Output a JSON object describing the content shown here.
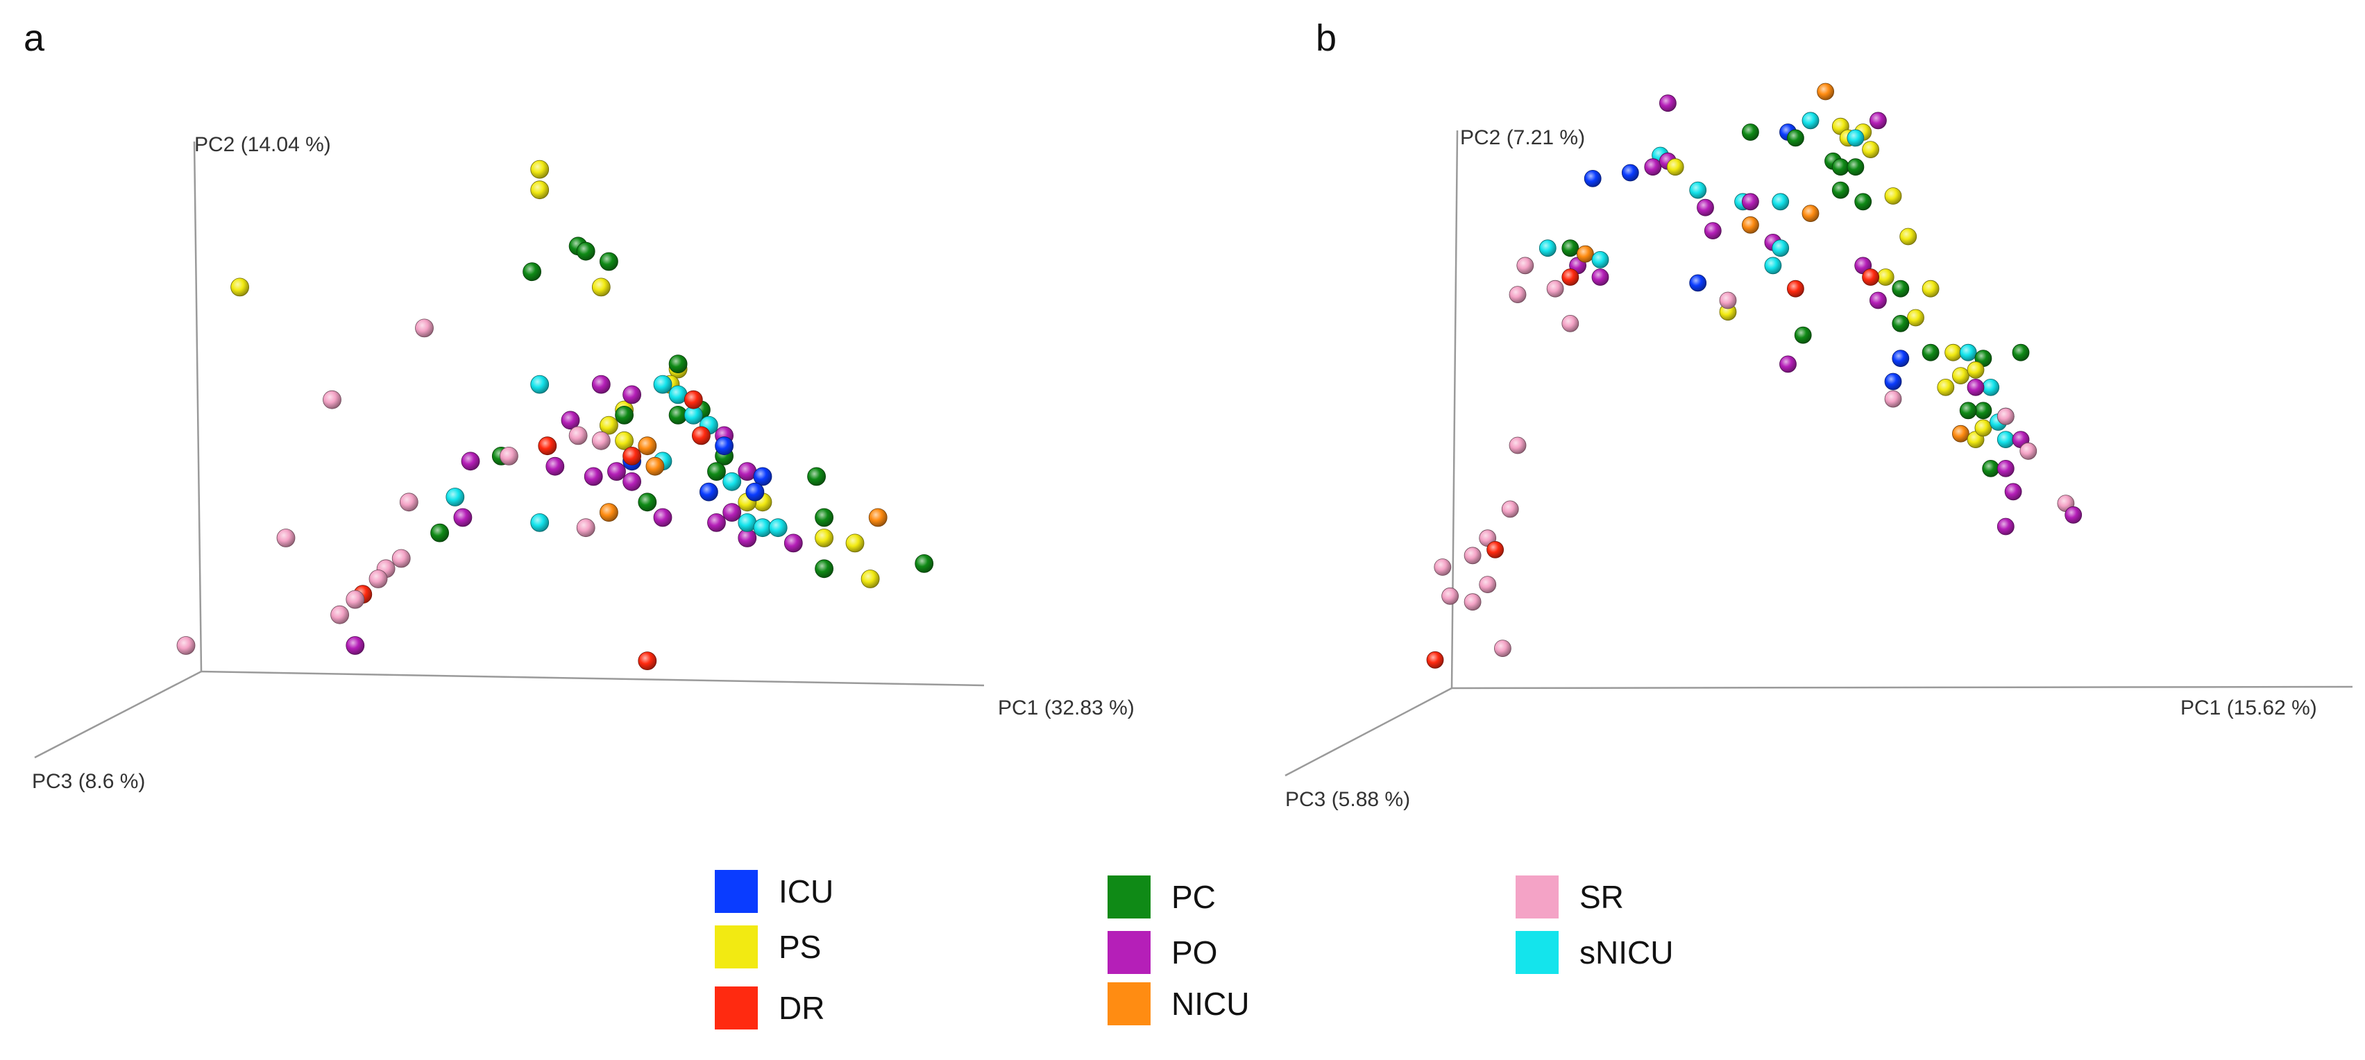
{
  "panels": {
    "a": "a",
    "b": "b"
  },
  "colors": {
    "ICU": "#0a3cff",
    "PS": "#f2ea12",
    "DR": "#ff2a10",
    "PC": "#0f8a16",
    "PO": "#b51fb8",
    "NICU": "#ff8c12",
    "SR": "#f4a3c6",
    "sNICU": "#14e4ec"
  },
  "legend": [
    {
      "key": "ICU",
      "label": "ICU"
    },
    {
      "key": "PS",
      "label": "PS"
    },
    {
      "key": "DR",
      "label": "DR"
    },
    {
      "key": "PC",
      "label": "PC"
    },
    {
      "key": "PO",
      "label": "PO"
    },
    {
      "key": "NICU",
      "label": "NICU"
    },
    {
      "key": "SR",
      "label": "SR"
    },
    {
      "key": "sNICU",
      "label": "sNICU"
    }
  ],
  "chart_data": [
    {
      "type": "scatter",
      "panel": "a",
      "title": "",
      "xlabel": "PC1 (32.83 %)",
      "ylabel": "PC2 (14.04 %)",
      "zlabel": "PC3 (8.6 %)",
      "xlim": [
        0,
        1
      ],
      "ylim": [
        0,
        1
      ],
      "note": "3D PCoA scatter; x/y are projected values normalized to the plotted axes",
      "points": [
        {
          "g": "PS",
          "x": 0.46,
          "y": 0.97
        },
        {
          "g": "PS",
          "x": 0.46,
          "y": 0.93
        },
        {
          "g": "PS",
          "x": 0.07,
          "y": 0.74
        },
        {
          "g": "PS",
          "x": 0.54,
          "y": 0.74
        },
        {
          "g": "PS",
          "x": 0.64,
          "y": 0.58
        },
        {
          "g": "PS",
          "x": 0.63,
          "y": 0.55
        },
        {
          "g": "PS",
          "x": 0.57,
          "y": 0.5
        },
        {
          "g": "PS",
          "x": 0.57,
          "y": 0.44
        },
        {
          "g": "PS",
          "x": 0.75,
          "y": 0.32
        },
        {
          "g": "PS",
          "x": 0.83,
          "y": 0.25
        },
        {
          "g": "PS",
          "x": 0.87,
          "y": 0.24
        },
        {
          "g": "PS",
          "x": 0.89,
          "y": 0.17
        },
        {
          "g": "PS",
          "x": 0.55,
          "y": 0.47
        },
        {
          "g": "PS",
          "x": 0.73,
          "y": 0.32
        },
        {
          "g": "PC",
          "x": 0.51,
          "y": 0.82
        },
        {
          "g": "PC",
          "x": 0.52,
          "y": 0.81
        },
        {
          "g": "PC",
          "x": 0.55,
          "y": 0.79
        },
        {
          "g": "PC",
          "x": 0.45,
          "y": 0.77
        },
        {
          "g": "PC",
          "x": 0.64,
          "y": 0.59
        },
        {
          "g": "PC",
          "x": 0.67,
          "y": 0.5
        },
        {
          "g": "PC",
          "x": 0.7,
          "y": 0.41
        },
        {
          "g": "PC",
          "x": 0.82,
          "y": 0.37
        },
        {
          "g": "PC",
          "x": 0.83,
          "y": 0.29
        },
        {
          "g": "PC",
          "x": 0.83,
          "y": 0.19
        },
        {
          "g": "PC",
          "x": 0.96,
          "y": 0.2
        },
        {
          "g": "PC",
          "x": 0.41,
          "y": 0.41
        },
        {
          "g": "PC",
          "x": 0.33,
          "y": 0.26
        },
        {
          "g": "PC",
          "x": 0.6,
          "y": 0.32
        },
        {
          "g": "PC",
          "x": 0.57,
          "y": 0.49
        },
        {
          "g": "PC",
          "x": 0.64,
          "y": 0.49
        },
        {
          "g": "PC",
          "x": 0.69,
          "y": 0.38
        },
        {
          "g": "PO",
          "x": 0.54,
          "y": 0.55
        },
        {
          "g": "PO",
          "x": 0.58,
          "y": 0.53
        },
        {
          "g": "PO",
          "x": 0.5,
          "y": 0.48
        },
        {
          "g": "PO",
          "x": 0.48,
          "y": 0.39
        },
        {
          "g": "PO",
          "x": 0.53,
          "y": 0.37
        },
        {
          "g": "PO",
          "x": 0.56,
          "y": 0.38
        },
        {
          "g": "PO",
          "x": 0.7,
          "y": 0.45
        },
        {
          "g": "PO",
          "x": 0.73,
          "y": 0.38
        },
        {
          "g": "PO",
          "x": 0.71,
          "y": 0.3
        },
        {
          "g": "PO",
          "x": 0.69,
          "y": 0.28
        },
        {
          "g": "PO",
          "x": 0.73,
          "y": 0.25
        },
        {
          "g": "PO",
          "x": 0.79,
          "y": 0.24
        },
        {
          "g": "PO",
          "x": 0.62,
          "y": 0.29
        },
        {
          "g": "PO",
          "x": 0.37,
          "y": 0.4
        },
        {
          "g": "PO",
          "x": 0.36,
          "y": 0.29
        },
        {
          "g": "PO",
          "x": 0.22,
          "y": 0.04
        },
        {
          "g": "PO",
          "x": 0.58,
          "y": 0.36
        },
        {
          "g": "sNICU",
          "x": 0.46,
          "y": 0.55
        },
        {
          "g": "sNICU",
          "x": 0.62,
          "y": 0.55
        },
        {
          "g": "sNICU",
          "x": 0.64,
          "y": 0.53
        },
        {
          "g": "sNICU",
          "x": 0.66,
          "y": 0.49
        },
        {
          "g": "sNICU",
          "x": 0.68,
          "y": 0.47
        },
        {
          "g": "sNICU",
          "x": 0.71,
          "y": 0.36
        },
        {
          "g": "sNICU",
          "x": 0.73,
          "y": 0.28
        },
        {
          "g": "sNICU",
          "x": 0.75,
          "y": 0.27
        },
        {
          "g": "sNICU",
          "x": 0.77,
          "y": 0.27
        },
        {
          "g": "sNICU",
          "x": 0.35,
          "y": 0.33
        },
        {
          "g": "sNICU",
          "x": 0.46,
          "y": 0.28
        },
        {
          "g": "sNICU",
          "x": 0.62,
          "y": 0.4
        },
        {
          "g": "ICU",
          "x": 0.7,
          "y": 0.43
        },
        {
          "g": "ICU",
          "x": 0.58,
          "y": 0.4
        },
        {
          "g": "ICU",
          "x": 0.75,
          "y": 0.37
        },
        {
          "g": "ICU",
          "x": 0.74,
          "y": 0.34
        },
        {
          "g": "ICU",
          "x": 0.68,
          "y": 0.34
        },
        {
          "g": "DR",
          "x": 0.47,
          "y": 0.43
        },
        {
          "g": "DR",
          "x": 0.66,
          "y": 0.52
        },
        {
          "g": "DR",
          "x": 0.67,
          "y": 0.45
        },
        {
          "g": "DR",
          "x": 0.58,
          "y": 0.41
        },
        {
          "g": "DR",
          "x": 0.23,
          "y": 0.14
        },
        {
          "g": "DR",
          "x": 0.6,
          "y": 0.01
        },
        {
          "g": "NICU",
          "x": 0.6,
          "y": 0.43
        },
        {
          "g": "NICU",
          "x": 0.61,
          "y": 0.39
        },
        {
          "g": "NICU",
          "x": 0.55,
          "y": 0.3
        },
        {
          "g": "NICU",
          "x": 0.9,
          "y": 0.29
        },
        {
          "g": "SR",
          "x": 0.31,
          "y": 0.66
        },
        {
          "g": "SR",
          "x": 0.19,
          "y": 0.52
        },
        {
          "g": "SR",
          "x": 0.13,
          "y": 0.25
        },
        {
          "g": "SR",
          "x": 0.29,
          "y": 0.32
        },
        {
          "g": "SR",
          "x": 0.28,
          "y": 0.21
        },
        {
          "g": "SR",
          "x": 0.26,
          "y": 0.19
        },
        {
          "g": "SR",
          "x": 0.25,
          "y": 0.17
        },
        {
          "g": "SR",
          "x": 0.22,
          "y": 0.13
        },
        {
          "g": "SR",
          "x": 0.2,
          "y": 0.1
        },
        {
          "g": "SR",
          "x": 0.0,
          "y": 0.04
        },
        {
          "g": "SR",
          "x": 0.42,
          "y": 0.41
        },
        {
          "g": "SR",
          "x": 0.52,
          "y": 0.27
        },
        {
          "g": "SR",
          "x": 0.51,
          "y": 0.45
        },
        {
          "g": "SR",
          "x": 0.54,
          "y": 0.44
        }
      ]
    },
    {
      "type": "scatter",
      "panel": "b",
      "title": "",
      "xlabel": "PC1 (15.62 %)",
      "ylabel": "PC2 (7.21 %)",
      "zlabel": "PC3 (5.88 %)",
      "xlim": [
        0,
        1
      ],
      "ylim": [
        0,
        1
      ],
      "note": "3D PCoA scatter; x/y are projected values normalized to the plotted axes",
      "points": [
        {
          "g": "NICU",
          "x": 0.52,
          "y": 1.0
        },
        {
          "g": "PO",
          "x": 0.31,
          "y": 0.98
        },
        {
          "g": "PO",
          "x": 0.59,
          "y": 0.95
        },
        {
          "g": "PS",
          "x": 0.54,
          "y": 0.94
        },
        {
          "g": "PS",
          "x": 0.55,
          "y": 0.92
        },
        {
          "g": "PS",
          "x": 0.57,
          "y": 0.93
        },
        {
          "g": "PS",
          "x": 0.58,
          "y": 0.9
        },
        {
          "g": "ICU",
          "x": 0.47,
          "y": 0.93
        },
        {
          "g": "PC",
          "x": 0.42,
          "y": 0.93
        },
        {
          "g": "PC",
          "x": 0.48,
          "y": 0.92
        },
        {
          "g": "sNICU",
          "x": 0.5,
          "y": 0.95
        },
        {
          "g": "sNICU",
          "x": 0.56,
          "y": 0.92
        },
        {
          "g": "PC",
          "x": 0.53,
          "y": 0.88
        },
        {
          "g": "PC",
          "x": 0.54,
          "y": 0.87
        },
        {
          "g": "PC",
          "x": 0.56,
          "y": 0.87
        },
        {
          "g": "PC",
          "x": 0.54,
          "y": 0.83
        },
        {
          "g": "PC",
          "x": 0.57,
          "y": 0.81
        },
        {
          "g": "PS",
          "x": 0.61,
          "y": 0.82
        },
        {
          "g": "PS",
          "x": 0.63,
          "y": 0.75
        },
        {
          "g": "PS",
          "x": 0.66,
          "y": 0.66
        },
        {
          "g": "PS",
          "x": 0.6,
          "y": 0.68
        },
        {
          "g": "PS",
          "x": 0.64,
          "y": 0.61
        },
        {
          "g": "ICU",
          "x": 0.21,
          "y": 0.85
        },
        {
          "g": "ICU",
          "x": 0.26,
          "y": 0.86
        },
        {
          "g": "sNICU",
          "x": 0.3,
          "y": 0.89
        },
        {
          "g": "PO",
          "x": 0.29,
          "y": 0.87
        },
        {
          "g": "PO",
          "x": 0.31,
          "y": 0.88
        },
        {
          "g": "PS",
          "x": 0.32,
          "y": 0.87
        },
        {
          "g": "sNICU",
          "x": 0.35,
          "y": 0.83
        },
        {
          "g": "PO",
          "x": 0.36,
          "y": 0.8
        },
        {
          "g": "PO",
          "x": 0.37,
          "y": 0.76
        },
        {
          "g": "sNICU",
          "x": 0.41,
          "y": 0.81
        },
        {
          "g": "PO",
          "x": 0.42,
          "y": 0.81
        },
        {
          "g": "sNICU",
          "x": 0.46,
          "y": 0.81
        },
        {
          "g": "NICU",
          "x": 0.5,
          "y": 0.79
        },
        {
          "g": "NICU",
          "x": 0.42,
          "y": 0.77
        },
        {
          "g": "PO",
          "x": 0.45,
          "y": 0.74
        },
        {
          "g": "sNICU",
          "x": 0.46,
          "y": 0.73
        },
        {
          "g": "sNICU",
          "x": 0.45,
          "y": 0.7
        },
        {
          "g": "PO",
          "x": 0.57,
          "y": 0.7
        },
        {
          "g": "DR",
          "x": 0.58,
          "y": 0.68
        },
        {
          "g": "DR",
          "x": 0.48,
          "y": 0.66
        },
        {
          "g": "PO",
          "x": 0.59,
          "y": 0.64
        },
        {
          "g": "PC",
          "x": 0.62,
          "y": 0.66
        },
        {
          "g": "PC",
          "x": 0.62,
          "y": 0.6
        },
        {
          "g": "PC",
          "x": 0.66,
          "y": 0.55
        },
        {
          "g": "PC",
          "x": 0.78,
          "y": 0.55
        },
        {
          "g": "PC",
          "x": 0.49,
          "y": 0.58
        },
        {
          "g": "PO",
          "x": 0.47,
          "y": 0.53
        },
        {
          "g": "ICU",
          "x": 0.62,
          "y": 0.54
        },
        {
          "g": "ICU",
          "x": 0.61,
          "y": 0.5
        },
        {
          "g": "SR",
          "x": 0.61,
          "y": 0.47
        },
        {
          "g": "PS",
          "x": 0.69,
          "y": 0.55
        },
        {
          "g": "sNICU",
          "x": 0.71,
          "y": 0.55
        },
        {
          "g": "PS",
          "x": 0.7,
          "y": 0.51
        },
        {
          "g": "PC",
          "x": 0.73,
          "y": 0.54
        },
        {
          "g": "PS",
          "x": 0.72,
          "y": 0.52
        },
        {
          "g": "PS",
          "x": 0.68,
          "y": 0.49
        },
        {
          "g": "sNICU",
          "x": 0.74,
          "y": 0.49
        },
        {
          "g": "PO",
          "x": 0.72,
          "y": 0.49
        },
        {
          "g": "PC",
          "x": 0.73,
          "y": 0.45
        },
        {
          "g": "PC",
          "x": 0.71,
          "y": 0.45
        },
        {
          "g": "NICU",
          "x": 0.7,
          "y": 0.41
        },
        {
          "g": "PS",
          "x": 0.72,
          "y": 0.4
        },
        {
          "g": "PS",
          "x": 0.73,
          "y": 0.42
        },
        {
          "g": "sNICU",
          "x": 0.75,
          "y": 0.43
        },
        {
          "g": "sNICU",
          "x": 0.76,
          "y": 0.44
        },
        {
          "g": "SR",
          "x": 0.76,
          "y": 0.44
        },
        {
          "g": "sNICU",
          "x": 0.76,
          "y": 0.4
        },
        {
          "g": "PO",
          "x": 0.78,
          "y": 0.4
        },
        {
          "g": "SR",
          "x": 0.79,
          "y": 0.38
        },
        {
          "g": "PC",
          "x": 0.74,
          "y": 0.35
        },
        {
          "g": "PO",
          "x": 0.76,
          "y": 0.35
        },
        {
          "g": "PO",
          "x": 0.77,
          "y": 0.31
        },
        {
          "g": "PO",
          "x": 0.76,
          "y": 0.25
        },
        {
          "g": "SR",
          "x": 0.84,
          "y": 0.29
        },
        {
          "g": "PO",
          "x": 0.85,
          "y": 0.27
        },
        {
          "g": "ICU",
          "x": 0.35,
          "y": 0.67
        },
        {
          "g": "PS",
          "x": 0.39,
          "y": 0.62
        },
        {
          "g": "SR",
          "x": 0.39,
          "y": 0.64
        },
        {
          "g": "SR",
          "x": 0.18,
          "y": 0.6
        },
        {
          "g": "SR",
          "x": 0.16,
          "y": 0.66
        },
        {
          "g": "SR",
          "x": 0.11,
          "y": 0.65
        },
        {
          "g": "SR",
          "x": 0.12,
          "y": 0.7
        },
        {
          "g": "sNICU",
          "x": 0.15,
          "y": 0.73
        },
        {
          "g": "PC",
          "x": 0.18,
          "y": 0.73
        },
        {
          "g": "PO",
          "x": 0.19,
          "y": 0.7
        },
        {
          "g": "NICU",
          "x": 0.2,
          "y": 0.72
        },
        {
          "g": "sNICU",
          "x": 0.22,
          "y": 0.71
        },
        {
          "g": "PO",
          "x": 0.22,
          "y": 0.68
        },
        {
          "g": "DR",
          "x": 0.18,
          "y": 0.68
        },
        {
          "g": "SR",
          "x": 0.11,
          "y": 0.39
        },
        {
          "g": "SR",
          "x": 0.1,
          "y": 0.28
        },
        {
          "g": "SR",
          "x": 0.07,
          "y": 0.23
        },
        {
          "g": "SR",
          "x": 0.05,
          "y": 0.2
        },
        {
          "g": "DR",
          "x": 0.08,
          "y": 0.21
        },
        {
          "g": "SR",
          "x": 0.07,
          "y": 0.15
        },
        {
          "g": "SR",
          "x": 0.05,
          "y": 0.12
        },
        {
          "g": "SR",
          "x": 0.01,
          "y": 0.18
        },
        {
          "g": "SR",
          "x": 0.09,
          "y": 0.04
        },
        {
          "g": "DR",
          "x": 0.0,
          "y": 0.02
        },
        {
          "g": "SR",
          "x": 0.02,
          "y": 0.13
        }
      ]
    }
  ]
}
